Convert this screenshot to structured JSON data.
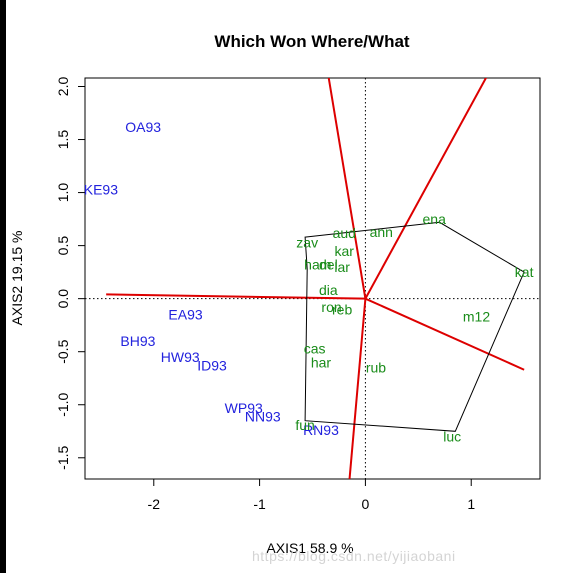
{
  "chart_data": {
    "type": "scatter",
    "title": "Which Won Where/What",
    "xlabel": "AXIS1 58.9 %",
    "ylabel": "AXIS2 19.15 %",
    "xlim": [
      -2.65,
      1.65
    ],
    "ylim": [
      -1.7,
      2.08
    ],
    "xticks": [
      -2,
      -1,
      0,
      1
    ],
    "yticks": [
      -1.5,
      -1.0,
      -0.5,
      0.0,
      0.5,
      1.0,
      1.5,
      2.0
    ],
    "xtick_labels": [
      "-2",
      "-1",
      "0",
      "1"
    ],
    "ytick_labels": [
      "-1.5",
      "-1.0",
      "-0.5",
      "0.0",
      "0.5",
      "1.0",
      "1.5",
      "2.0"
    ],
    "reference_lines": {
      "x": 0,
      "y": 0,
      "style": "dotted"
    },
    "colors": {
      "environments": "#2222dd",
      "genotypes": "#1a8c1a",
      "sectors": "#dd0000",
      "hull": "#000000"
    },
    "environments": [
      {
        "label": "OA93",
        "x": -2.1,
        "y": 1.62
      },
      {
        "label": "KE93",
        "x": -2.5,
        "y": 1.03
      },
      {
        "label": "EA93",
        "x": -1.7,
        "y": -0.15
      },
      {
        "label": "BH93",
        "x": -2.15,
        "y": -0.4
      },
      {
        "label": "HW93",
        "x": -1.75,
        "y": -0.55
      },
      {
        "label": "ID93",
        "x": -1.45,
        "y": -0.63
      },
      {
        "label": "WP93",
        "x": -1.15,
        "y": -1.03
      },
      {
        "label": "NN93",
        "x": -0.97,
        "y": -1.11
      },
      {
        "label": "RN93",
        "x": -0.42,
        "y": -1.24
      }
    ],
    "genotypes": [
      {
        "label": "ena",
        "x": 0.65,
        "y": 0.75
      },
      {
        "label": "kat",
        "x": 1.5,
        "y": 0.25
      },
      {
        "label": "m12",
        "x": 1.05,
        "y": -0.17
      },
      {
        "label": "luc",
        "x": 0.82,
        "y": -1.3
      },
      {
        "label": "fun",
        "x": -0.57,
        "y": -1.19
      },
      {
        "label": "cas",
        "x": -0.48,
        "y": -0.47
      },
      {
        "label": "har",
        "x": -0.42,
        "y": -0.6
      },
      {
        "label": "rub",
        "x": 0.1,
        "y": -0.65
      },
      {
        "label": "zav",
        "x": -0.55,
        "y": 0.53
      },
      {
        "label": "aud",
        "x": -0.2,
        "y": 0.62
      },
      {
        "label": "ann",
        "x": 0.15,
        "y": 0.63
      },
      {
        "label": "kar",
        "x": -0.2,
        "y": 0.45
      },
      {
        "label": "ham",
        "x": -0.45,
        "y": 0.32
      },
      {
        "label": "del",
        "x": -0.35,
        "y": 0.32
      },
      {
        "label": "lar",
        "x": -0.22,
        "y": 0.3
      },
      {
        "label": "dia",
        "x": -0.35,
        "y": 0.08
      },
      {
        "label": "ron",
        "x": -0.32,
        "y": -0.08
      },
      {
        "label": "reb",
        "x": -0.22,
        "y": -0.1
      }
    ],
    "hull": [
      {
        "x": -0.57,
        "y": 0.58
      },
      {
        "x": 0.7,
        "y": 0.72
      },
      {
        "x": 1.5,
        "y": 0.25
      },
      {
        "x": 0.85,
        "y": -1.25
      },
      {
        "x": -0.57,
        "y": -1.15
      },
      {
        "x": -0.55,
        "y": 0.28
      }
    ],
    "sector_lines": [
      {
        "x": -0.35,
        "y": 2.1
      },
      {
        "x": 1.15,
        "y": 2.1
      },
      {
        "x": 1.5,
        "y": -0.67
      },
      {
        "x": -0.15,
        "y": -1.7
      },
      {
        "x": -2.45,
        "y": 0.04
      }
    ]
  }
}
